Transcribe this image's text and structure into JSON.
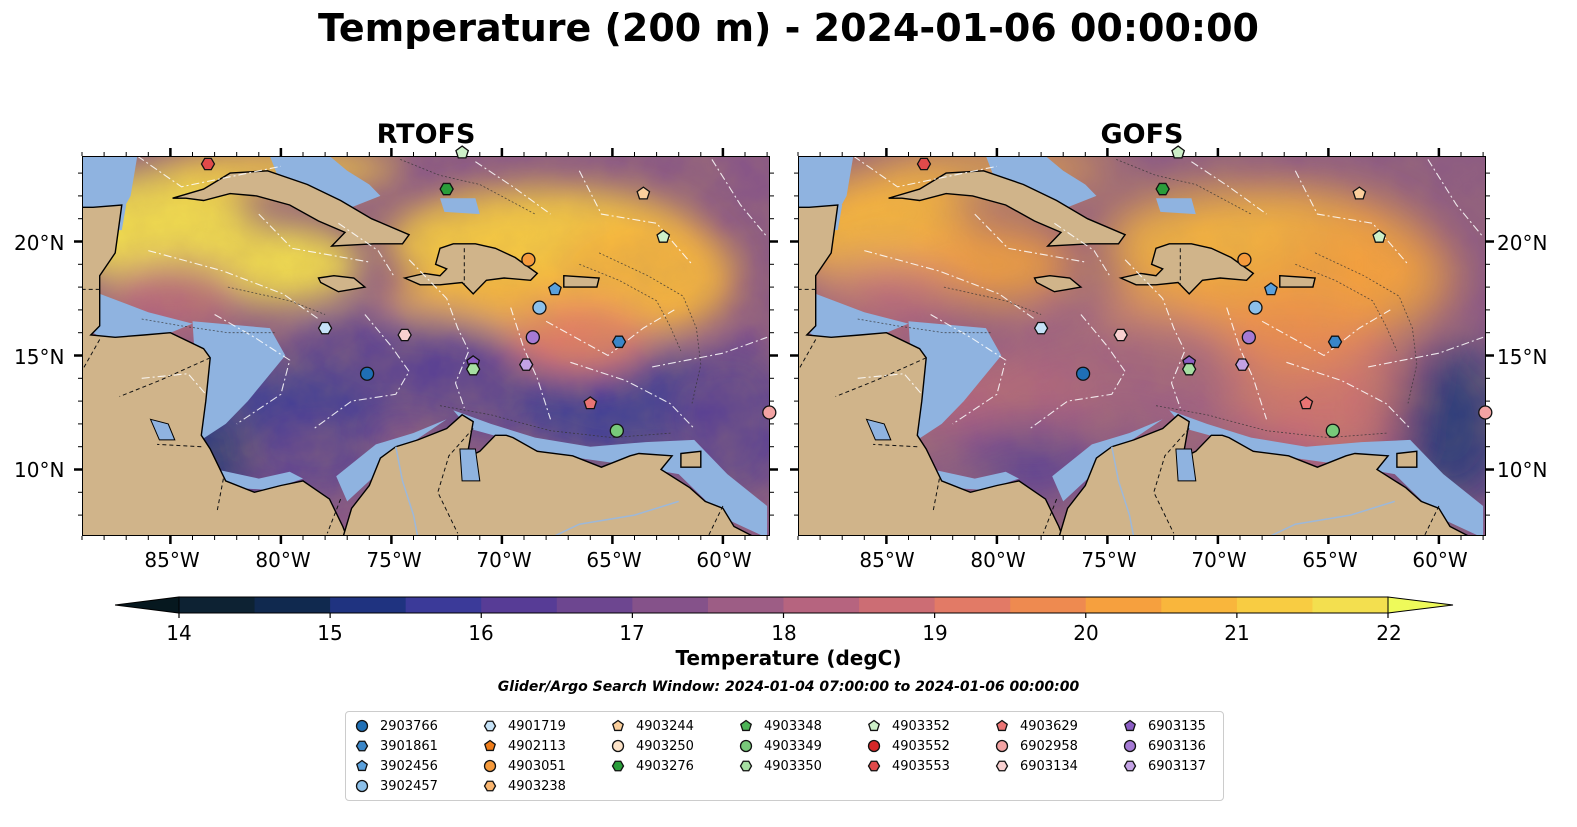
{
  "title": "Temperature (200 m) - 2024-01-06 00:00:00",
  "panels": [
    {
      "title": "RTOFS",
      "variant": "rtofs"
    },
    {
      "title": "GOFS",
      "variant": "gofs"
    }
  ],
  "lat_ticks": [
    "20°N",
    "15°N",
    "10°N"
  ],
  "lon_ticks": [
    "85°W",
    "80°W",
    "75°W",
    "70°W",
    "65°W",
    "60°W"
  ],
  "colorbar": {
    "label": "Temperature (degC)",
    "ticks": [
      "14",
      "15",
      "16",
      "17",
      "18",
      "19",
      "20",
      "21",
      "22"
    ],
    "min": 14,
    "max": 22,
    "step": 0.5,
    "colors": [
      "#0d2233",
      "#10294f",
      "#1f3380",
      "#3b3a99",
      "#573c96",
      "#6d4690",
      "#85528a",
      "#9d5d85",
      "#b6647f",
      "#cc6d74",
      "#e27a66",
      "#ee8a50",
      "#f6a03e",
      "#f9b63c",
      "#f8cc42",
      "#f3df4f"
    ],
    "extend_colors": {
      "under": "#06181f",
      "over": "#eefa5a"
    }
  },
  "search_window": "Glider/Argo Search Window: 2024-01-04 07:00:00 to 2024-01-06 00:00:00",
  "colors": {
    "land": "#d0b48a",
    "shelf": "#8fb3e0",
    "ocean_deep": "#06212f"
  },
  "legend": [
    {
      "id": "2903766",
      "marker": "circle",
      "color": "#1f6fb5"
    },
    {
      "id": "3901861",
      "marker": "hexagon",
      "color": "#3a86c8"
    },
    {
      "id": "3902456",
      "marker": "pentagon",
      "color": "#5aa0db"
    },
    {
      "id": "3902457",
      "marker": "circle",
      "color": "#8cc0ea"
    },
    {
      "id": "4901719",
      "marker": "hexagon",
      "color": "#c5e2f7"
    },
    {
      "id": "4902113",
      "marker": "pentagon",
      "color": "#f07d1a"
    },
    {
      "id": "4903051",
      "marker": "circle",
      "color": "#f59a3c"
    },
    {
      "id": "4903238",
      "marker": "hexagon",
      "color": "#f9b56f"
    },
    {
      "id": "4903244",
      "marker": "pentagon",
      "color": "#fbcf9c"
    },
    {
      "id": "4903250",
      "marker": "circle",
      "color": "#fde3c8"
    },
    {
      "id": "4903276",
      "marker": "hexagon",
      "color": "#2a9d3a"
    },
    {
      "id": "4903348",
      "marker": "pentagon",
      "color": "#4db357"
    },
    {
      "id": "4903349",
      "marker": "circle",
      "color": "#78c97a"
    },
    {
      "id": "4903350",
      "marker": "hexagon",
      "color": "#a6dea2"
    },
    {
      "id": "4903352",
      "marker": "pentagon",
      "color": "#cdf0c8"
    },
    {
      "id": "4903552",
      "marker": "circle",
      "color": "#d62728"
    },
    {
      "id": "4903553",
      "marker": "hexagon",
      "color": "#e04a4a"
    },
    {
      "id": "4903629",
      "marker": "pentagon",
      "color": "#ea7474"
    },
    {
      "id": "6902958",
      "marker": "circle",
      "color": "#f3a3a3"
    },
    {
      "id": "6903134",
      "marker": "hexagon",
      "color": "#f8d0d0"
    },
    {
      "id": "6903135",
      "marker": "pentagon",
      "color": "#8b5dc4"
    },
    {
      "id": "6903136",
      "marker": "circle",
      "color": "#a57ad4"
    },
    {
      "id": "6903137",
      "marker": "hexagon",
      "color": "#c3a2e4"
    }
  ],
  "floats": [
    {
      "id": "4903553",
      "lon": -83.3,
      "lat": 23.4
    },
    {
      "id": "4903352",
      "lon": -71.8,
      "lat": 23.9
    },
    {
      "id": "4903276",
      "lon": -72.5,
      "lat": 22.3
    },
    {
      "id": "4903244",
      "lon": -63.6,
      "lat": 22.1
    },
    {
      "id": "4903352",
      "lon": -62.7,
      "lat": 20.2
    },
    {
      "id": "4903051",
      "lon": -68.8,
      "lat": 19.2
    },
    {
      "id": "3902456",
      "lon": -67.6,
      "lat": 17.9
    },
    {
      "id": "3902457",
      "lon": -68.3,
      "lat": 17.1
    },
    {
      "id": "4901719",
      "lon": -78.0,
      "lat": 16.2
    },
    {
      "id": "6903134",
      "lon": -74.4,
      "lat": 15.9
    },
    {
      "id": "6903136",
      "lon": -68.6,
      "lat": 15.8
    },
    {
      "id": "3901861",
      "lon": -64.7,
      "lat": 15.6
    },
    {
      "id": "6903135",
      "lon": -71.3,
      "lat": 14.7
    },
    {
      "id": "4903350",
      "lon": -71.3,
      "lat": 14.4
    },
    {
      "id": "6903137",
      "lon": -68.9,
      "lat": 14.6
    },
    {
      "id": "2903766",
      "lon": -76.1,
      "lat": 14.2
    },
    {
      "id": "4903629",
      "lon": -66.0,
      "lat": 12.9
    },
    {
      "id": "6902958",
      "lon": -57.9,
      "lat": 12.5
    },
    {
      "id": "4903349",
      "lon": -64.8,
      "lat": 11.7
    }
  ]
}
